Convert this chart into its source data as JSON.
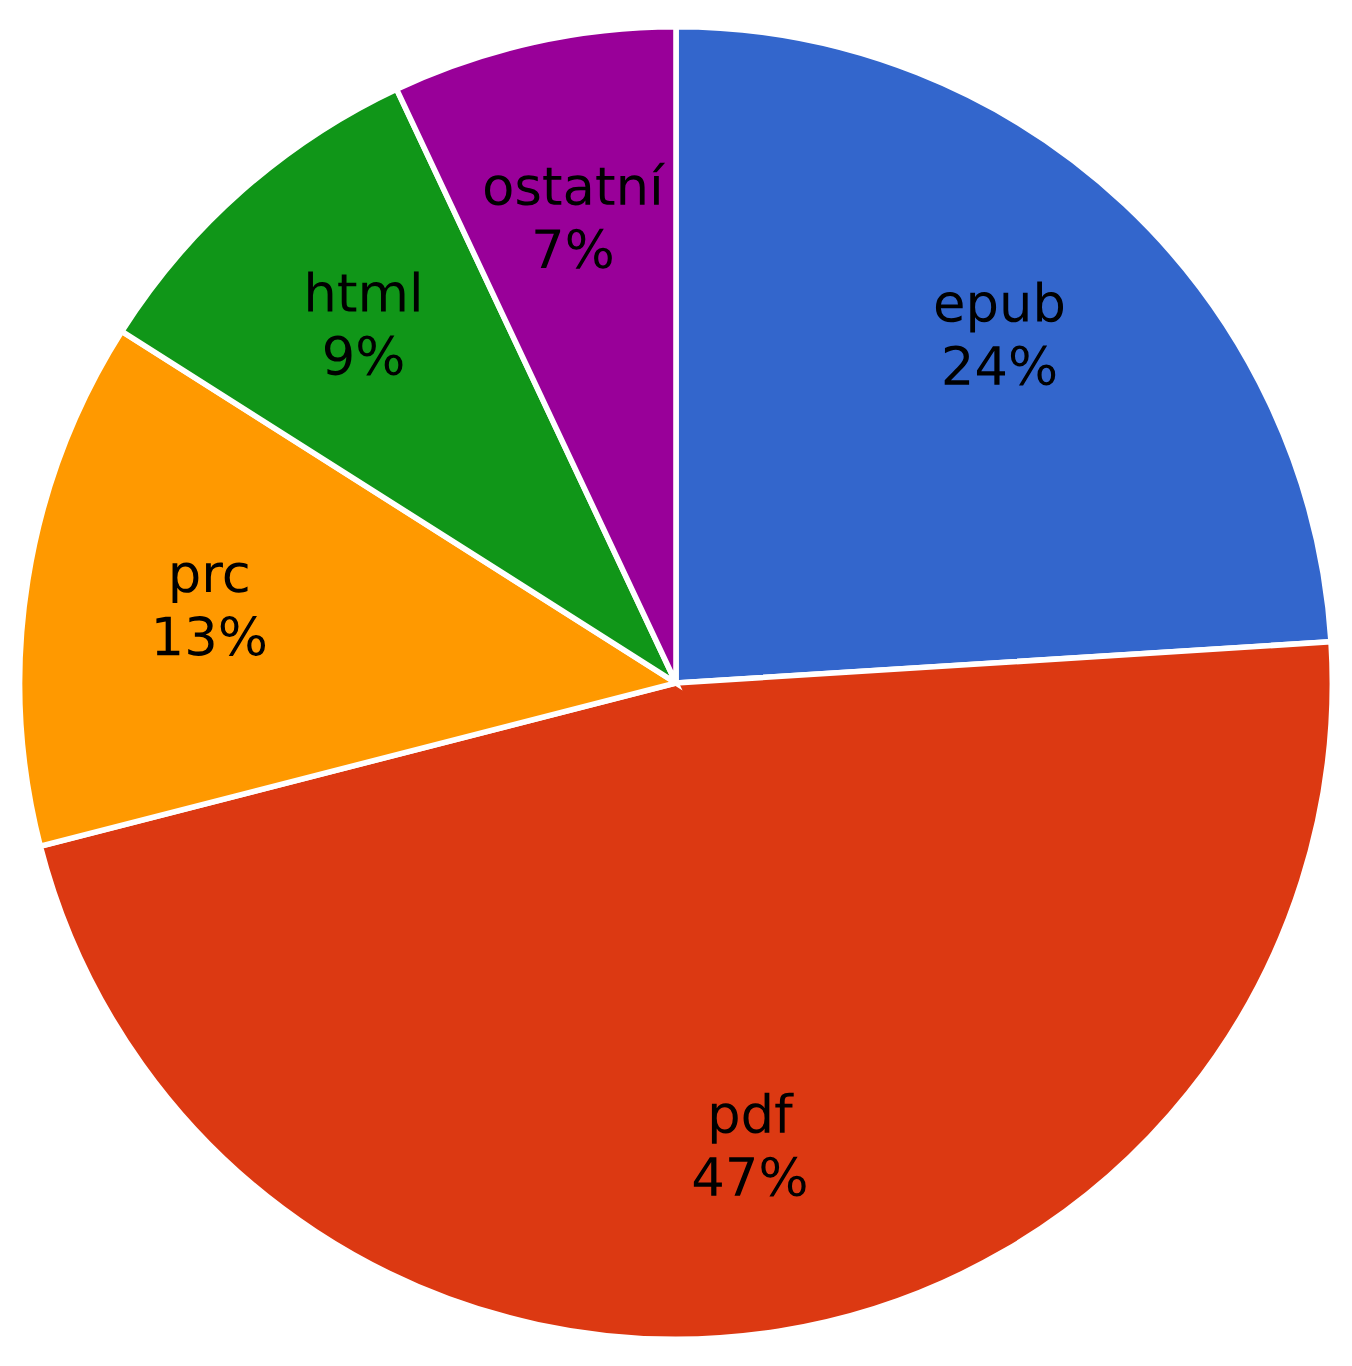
{
  "chart_data": {
    "type": "pie",
    "categories": [
      "epub",
      "pdf",
      "prc",
      "html",
      "ostatní"
    ],
    "values": [
      24,
      47,
      13,
      9,
      7
    ],
    "colors": [
      "#3366cc",
      "#dc3912",
      "#ff9900",
      "#109618",
      "#990099"
    ],
    "value_labels": [
      "24%",
      "47%",
      "13%",
      "9%",
      "7%"
    ]
  }
}
